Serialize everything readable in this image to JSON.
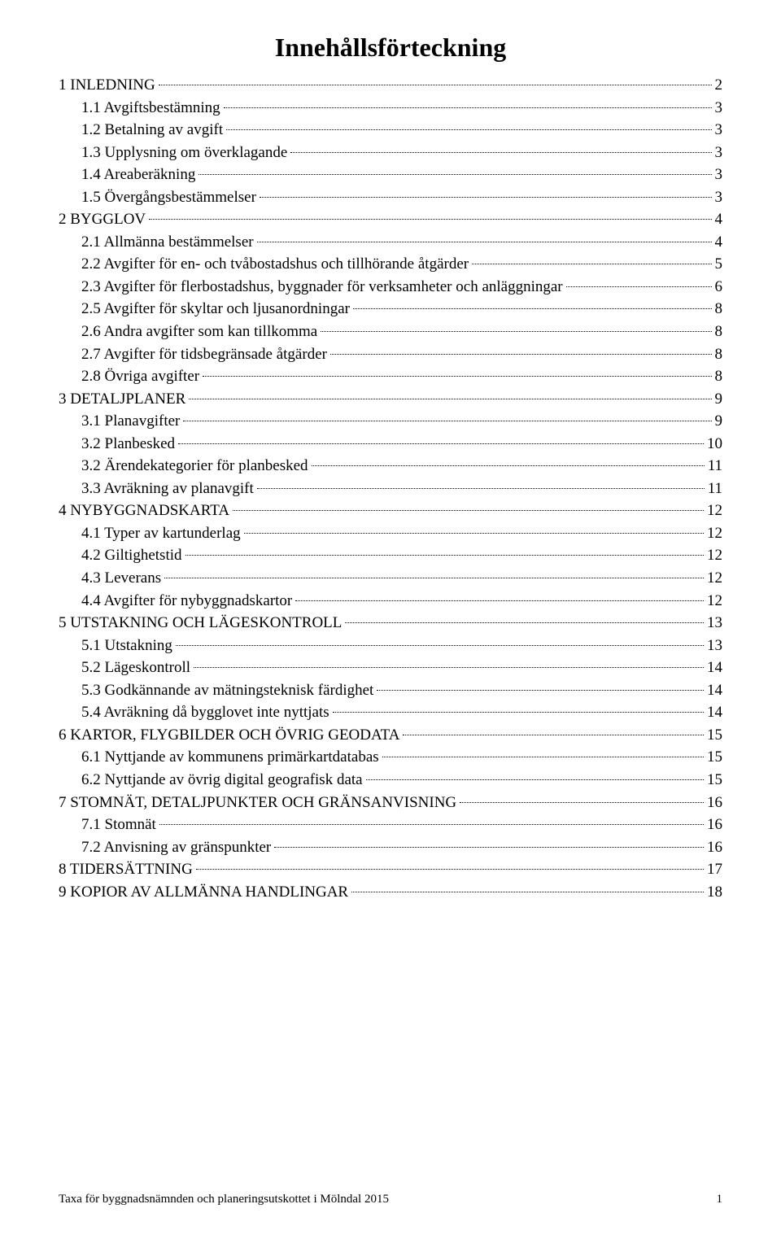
{
  "title": "Innehållsförteckning",
  "toc": [
    {
      "label": "1 INLEDNING",
      "page": "2",
      "indent": 0
    },
    {
      "label": "1.1 Avgiftsbestämning",
      "page": "3",
      "indent": 1
    },
    {
      "label": "1.2 Betalning av avgift",
      "page": "3",
      "indent": 1
    },
    {
      "label": "1.3 Upplysning om överklagande",
      "page": "3",
      "indent": 1
    },
    {
      "label": "1.4 Areaberäkning",
      "page": "3",
      "indent": 1
    },
    {
      "label": "1.5 Övergångsbestämmelser",
      "page": "3",
      "indent": 1
    },
    {
      "label": "2 BYGGLOV",
      "page": "4",
      "indent": 0
    },
    {
      "label": "2.1 Allmänna bestämmelser",
      "page": "4",
      "indent": 1
    },
    {
      "label": "2.2 Avgifter för en- och tvåbostadshus och tillhörande åtgärder",
      "page": "5",
      "indent": 1
    },
    {
      "label": "2.3 Avgifter för flerbostadshus, byggnader för verksamheter och anläggningar",
      "page": "6",
      "indent": 1
    },
    {
      "label": "2.5 Avgifter för skyltar och ljusanordningar",
      "page": "8",
      "indent": 1
    },
    {
      "label": "2.6 Andra avgifter som kan tillkomma",
      "page": "8",
      "indent": 1
    },
    {
      "label": "2.7 Avgifter för tidsbegränsade åtgärder",
      "page": "8",
      "indent": 1
    },
    {
      "label": "2.8 Övriga avgifter",
      "page": "8",
      "indent": 1
    },
    {
      "label": "3 DETALJPLANER",
      "page": "9",
      "indent": 0
    },
    {
      "label": "3.1 Planavgifter",
      "page": "9",
      "indent": 1
    },
    {
      "label": "3.2 Planbesked",
      "page": "10",
      "indent": 1
    },
    {
      "label": "3.2 Ärendekategorier för planbesked",
      "page": "11",
      "indent": 1
    },
    {
      "label": "3.3 Avräkning av planavgift",
      "page": "11",
      "indent": 1
    },
    {
      "label": "4 NYBYGGNADSKARTA",
      "page": "12",
      "indent": 0
    },
    {
      "label": "4.1 Typer av kartunderlag",
      "page": "12",
      "indent": 1
    },
    {
      "label": "4.2 Giltighetstid",
      "page": "12",
      "indent": 1
    },
    {
      "label": "4.3 Leverans",
      "page": "12",
      "indent": 1
    },
    {
      "label": "4.4 Avgifter för nybyggnadskartor",
      "page": "12",
      "indent": 1
    },
    {
      "label": "5 UTSTAKNING OCH LÄGESKONTROLL",
      "page": "13",
      "indent": 0
    },
    {
      "label": "5.1 Utstakning",
      "page": "13",
      "indent": 1
    },
    {
      "label": "5.2 Lägeskontroll",
      "page": "14",
      "indent": 1
    },
    {
      "label": "5.3 Godkännande av mätningsteknisk färdighet",
      "page": "14",
      "indent": 1
    },
    {
      "label": "5.4 Avräkning då bygglovet inte nyttjats",
      "page": "14",
      "indent": 1
    },
    {
      "label": "6 KARTOR, FLYGBILDER OCH ÖVRIG GEODATA",
      "page": "15",
      "indent": 0
    },
    {
      "label": "6.1 Nyttjande av kommunens primärkartdatabas",
      "page": "15",
      "indent": 1
    },
    {
      "label": "6.2 Nyttjande av övrig digital geografisk data",
      "page": "15",
      "indent": 1
    },
    {
      "label": "7 STOMNÄT, DETALJPUNKTER OCH GRÄNSANVISNING",
      "page": "16",
      "indent": 0
    },
    {
      "label": "7.1 Stomnät",
      "page": "16",
      "indent": 1
    },
    {
      "label": "7.2 Anvisning av gränspunkter",
      "page": "16",
      "indent": 1
    },
    {
      "label": "8 TIDERSÄTTNING",
      "page": "17",
      "indent": 0
    },
    {
      "label": "9 KOPIOR AV ALLMÄNNA HANDLINGAR",
      "page": "18",
      "indent": 0
    }
  ],
  "footer": {
    "text": "Taxa för byggnadsnämnden och planeringsutskottet i Mölndal 2015",
    "page_number": "1"
  }
}
